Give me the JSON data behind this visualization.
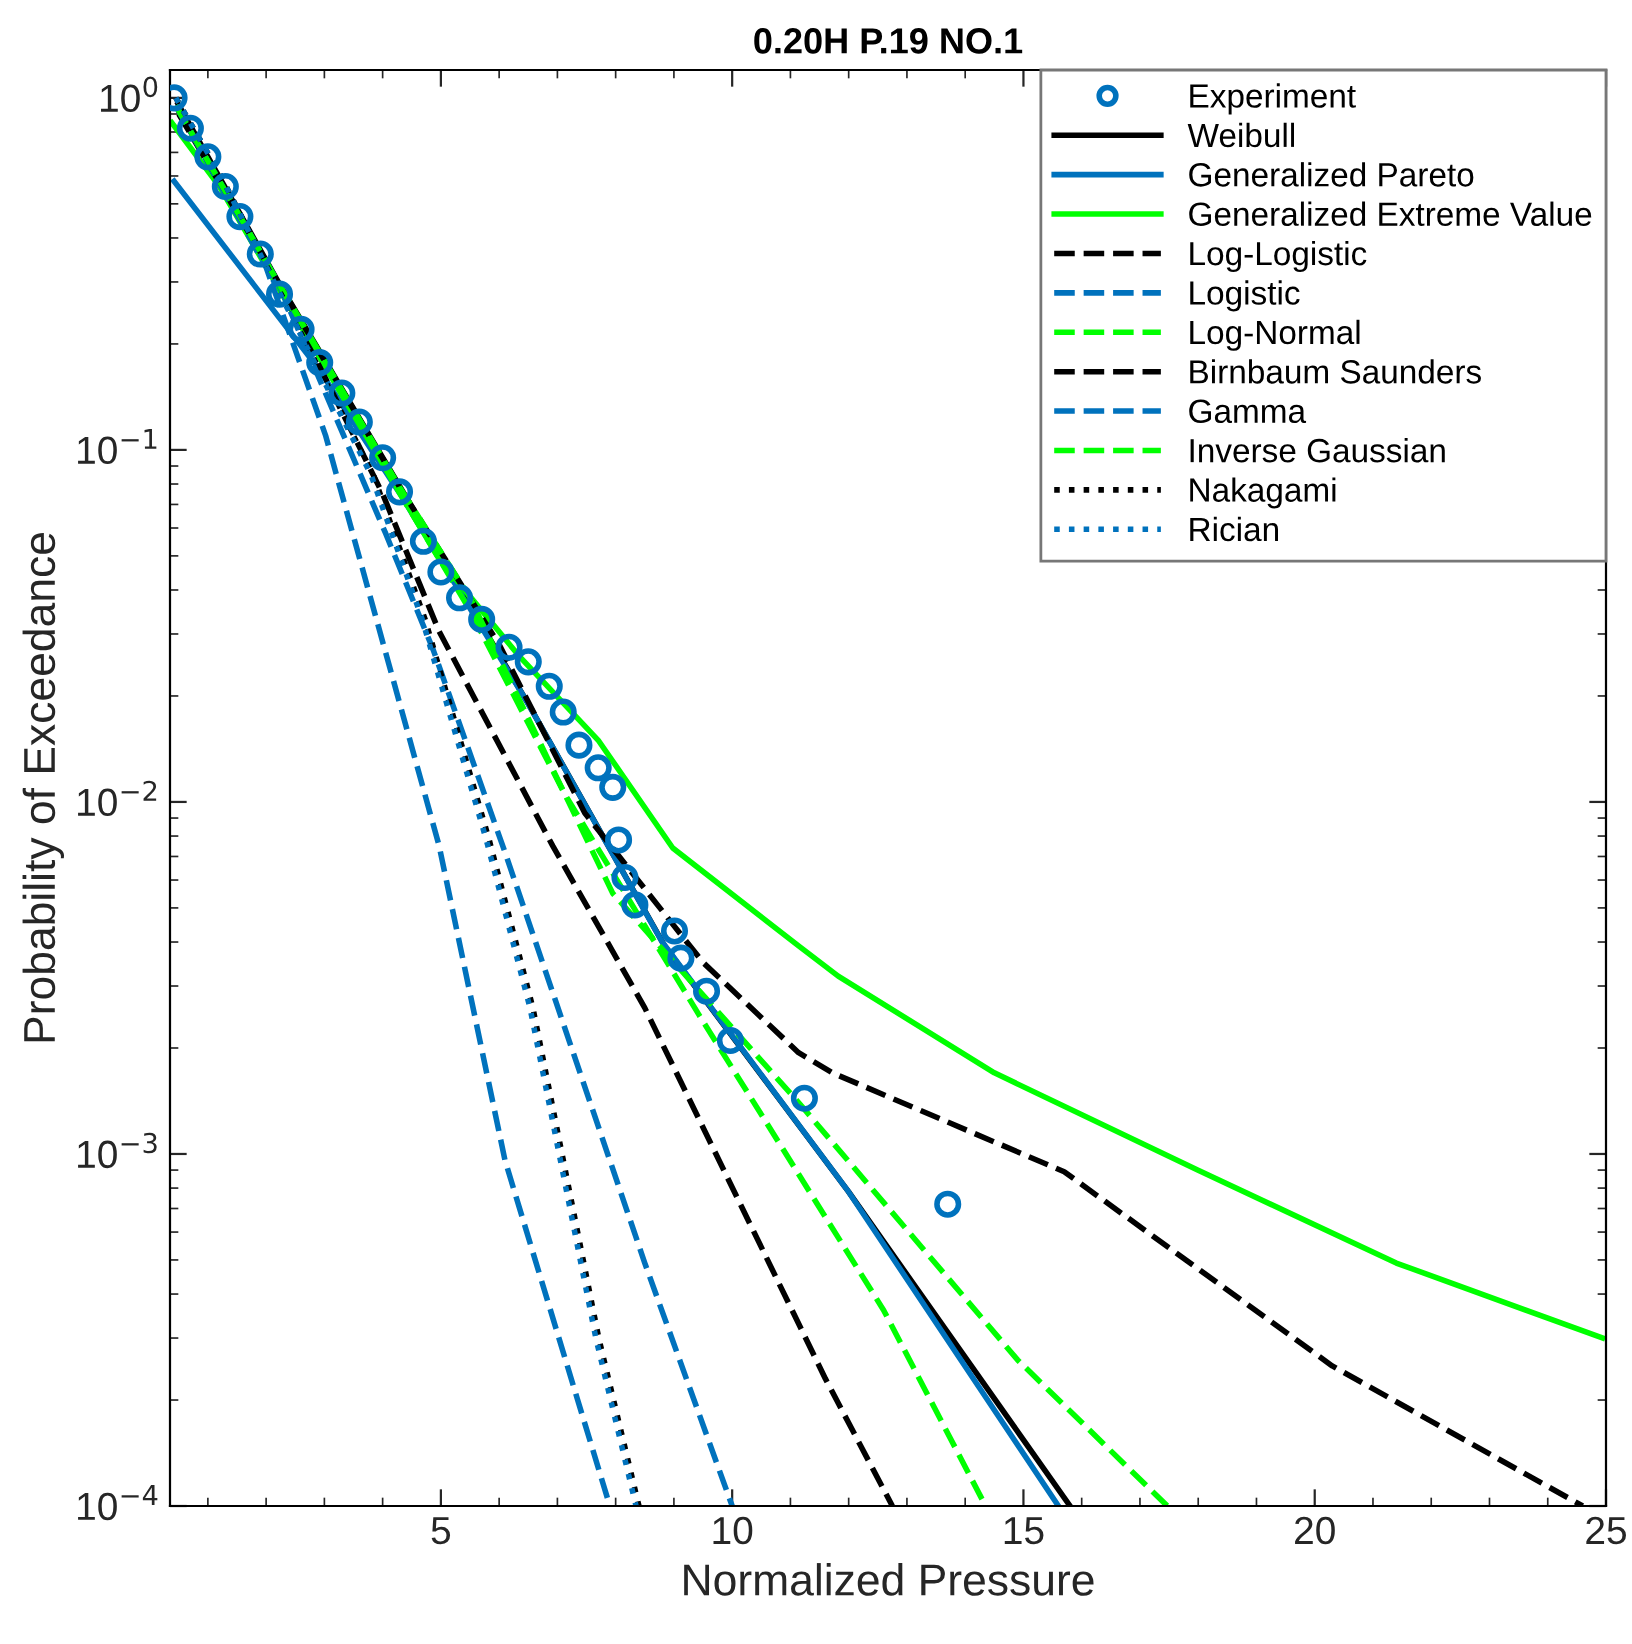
{
  "chart_data": {
    "type": "line",
    "title": "0.20H P.19 NO.1",
    "xlabel": "Normalized Pressure",
    "ylabel": "Probability of Exceedance",
    "log": "y",
    "xlim": [
      0.35,
      25
    ],
    "ylim": [
      0.0001,
      1.2
    ],
    "xticks": [
      5,
      10,
      15,
      20,
      25
    ],
    "yticks": [
      {
        "value": 0.0001,
        "label": "10$^{−4}$"
      },
      {
        "value": 0.001,
        "label": "10$^{−3}$"
      },
      {
        "value": 0.01,
        "label": "10$^{−2}$"
      },
      {
        "value": 0.1,
        "label": "10$^{−1}$"
      },
      {
        "value": 1,
        "label": "10$^{0}$"
      }
    ],
    "grid": false,
    "legend": "top right",
    "series": [
      {
        "name": "Experiment",
        "type": "scatter",
        "marker": "circle",
        "color": "#0072bd",
        "x": [
          0.42,
          0.7,
          1.0,
          1.3,
          1.55,
          1.9,
          2.23,
          2.6,
          2.92,
          3.3,
          3.6,
          4.0,
          4.29,
          4.7,
          5.0,
          5.32,
          5.7,
          6.17,
          6.5,
          6.86,
          7.1,
          7.37,
          7.7,
          7.95,
          8.05,
          8.16,
          8.33,
          9.01,
          9.12,
          9.56,
          9.97,
          11.24,
          13.7
        ],
        "values": [
          1.0,
          0.82,
          0.68,
          0.56,
          0.46,
          0.36,
          0.277,
          0.22,
          0.177,
          0.145,
          0.12,
          0.095,
          0.076,
          0.055,
          0.045,
          0.038,
          0.033,
          0.0275,
          0.025,
          0.0213,
          0.018,
          0.0145,
          0.0125,
          0.011,
          0.0078,
          0.0061,
          0.0051,
          0.0043,
          0.0036,
          0.0029,
          0.0021,
          0.00144,
          0.00072
        ]
      },
      {
        "name": "Weibull",
        "line_style": "solid",
        "color": "#000000",
        "x": [
          0.49,
          2.23,
          4.29,
          6.5,
          8.84,
          12.0,
          15.8
        ],
        "values": [
          0.96,
          0.296,
          0.079,
          0.019,
          0.0039,
          0.00078,
          0.0001
        ]
      },
      {
        "name": "Generalized Pareto",
        "line_style": "solid",
        "color": "#0072bd",
        "x": [
          0.42,
          2.9,
          4.3,
          6.5,
          8.8,
          12.0,
          15.6
        ],
        "values": [
          0.58,
          0.17,
          0.075,
          0.019,
          0.004,
          0.00078,
          0.0001
        ]
      },
      {
        "name": "Generalized Extreme Value",
        "line_style": "solid",
        "color": "#00ff00",
        "x": [
          0.38,
          1.2,
          2.23,
          4.97,
          6.34,
          7.71,
          8.98,
          11.14,
          11.82,
          14.5,
          17.99,
          21.4,
          24.94
        ],
        "values": [
          0.85,
          0.56,
          0.285,
          0.049,
          0.026,
          0.0149,
          0.0074,
          0.0039,
          0.0032,
          0.0017,
          0.0009,
          0.00049,
          0.0003
        ]
      },
      {
        "name": "Log-Logistic",
        "line_style": "dashed",
        "color": "#000000",
        "x": [
          0.5,
          2.2,
          4.3,
          6.0,
          7.47,
          9.5,
          11.14,
          11.72,
          15.7,
          20.3,
          24.6
        ],
        "values": [
          0.9,
          0.3,
          0.078,
          0.028,
          0.0093,
          0.0035,
          0.00194,
          0.0017,
          0.00089,
          0.00025,
          0.0001
        ]
      },
      {
        "name": "Logistic",
        "line_style": "dashed",
        "color": "#0072bd",
        "x": [
          0.45,
          2.0,
          3.02,
          4.97,
          6.1,
          7.9
        ],
        "values": [
          0.95,
          0.33,
          0.11,
          0.0075,
          0.00096,
          0.0001
        ]
      },
      {
        "name": "Log-Normal",
        "line_style": "dashed",
        "color": "#00ff00",
        "x": [
          0.45,
          2.2,
          4.3,
          5.5,
          7.95,
          11.14,
          14.9,
          17.47
        ],
        "values": [
          0.95,
          0.3,
          0.078,
          0.038,
          0.0055,
          0.0014,
          0.00026,
          0.0001
        ]
      },
      {
        "name": "Birnbaum Saunders",
        "line_style": "dashed",
        "color": "#000000",
        "x": [
          0.45,
          2.2,
          4.0,
          4.97,
          6.92,
          8.5,
          11.6,
          12.75
        ],
        "values": [
          0.95,
          0.3,
          0.075,
          0.0305,
          0.0075,
          0.0026,
          0.00023,
          0.0001
        ]
      },
      {
        "name": "Gamma",
        "line_style": "dashed",
        "color": "#0072bd",
        "x": [
          0.45,
          2.2,
          4.05,
          4.87,
          6.1,
          8.5,
          10.0
        ],
        "values": [
          0.95,
          0.3,
          0.058,
          0.027,
          0.0072,
          0.00049,
          0.0001
        ]
      },
      {
        "name": "Inverse Gaussian",
        "line_style": "dashed",
        "color": "#00ff00",
        "x": [
          0.45,
          2.2,
          4.3,
          5.5,
          7.13,
          9.42,
          12.6,
          14.35
        ],
        "values": [
          0.95,
          0.3,
          0.075,
          0.035,
          0.0105,
          0.0025,
          0.00036,
          0.0001
        ]
      },
      {
        "name": "Nakagami",
        "line_style": "dotted",
        "color": "#000000",
        "x": [
          0.45,
          1.2,
          3.84,
          4.73,
          5.83,
          6.58,
          7.71,
          8.4
        ],
        "values": [
          1.0,
          0.61,
          0.085,
          0.033,
          0.0078,
          0.0026,
          0.0003,
          0.0001
        ]
      },
      {
        "name": "Rician",
        "line_style": "dotted",
        "color": "#0072bd",
        "x": [
          0.45,
          1.2,
          3.8,
          4.68,
          5.78,
          6.53,
          7.66,
          8.35
        ],
        "values": [
          1.0,
          0.61,
          0.085,
          0.033,
          0.0078,
          0.0026,
          0.0003,
          0.0001
        ]
      }
    ]
  }
}
